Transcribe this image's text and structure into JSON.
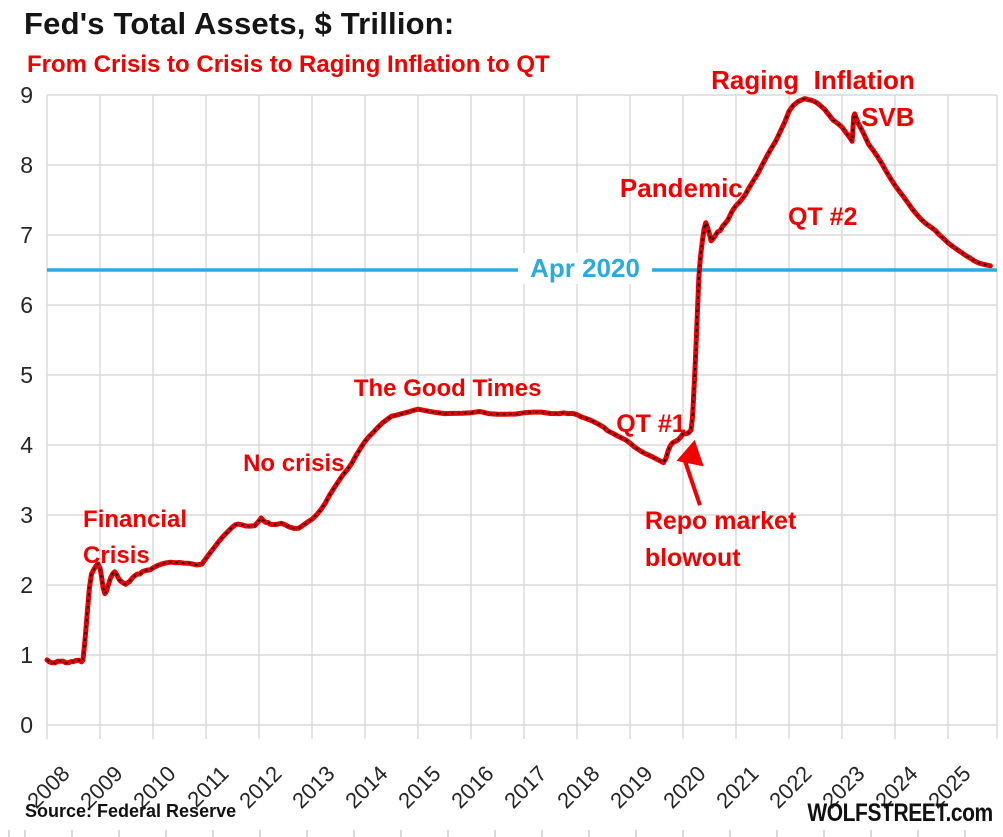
{
  "colors": {
    "red_text": "#f20000",
    "line_red": "#e60000",
    "cyan": "#29abe2",
    "grid": "#d9d9d9",
    "ink": "#151515"
  },
  "footer": {
    "source": "Source: Federal Reserve",
    "brand": "WOLFSTREET.com"
  },
  "chart_data": {
    "type": "line",
    "title": "Fed's Total Assets, $ Trillion:",
    "subtitle": "From Crisis to Crisis to Raging Inflation to QT",
    "xlabel": "",
    "ylabel": "",
    "ylim": [
      0,
      9
    ],
    "yticks": [
      0,
      1,
      2,
      3,
      4,
      5,
      6,
      7,
      8,
      9
    ],
    "xticks": [
      2008,
      2009,
      2010,
      2011,
      2012,
      2013,
      2014,
      2015,
      2016,
      2017,
      2018,
      2019,
      2020,
      2021,
      2022,
      2023,
      2024,
      2025
    ],
    "grid": true,
    "legend": "none",
    "reference_line": {
      "label": "Apr 2020",
      "value": 6.5
    },
    "annotations": [
      {
        "id": "financial-crisis",
        "text": "Financial\nCrisis",
        "year": 2008.68,
        "value": 3.19
      },
      {
        "id": "no-crisis",
        "text": "No crisis",
        "year": 2011.7,
        "value": 3.99
      },
      {
        "id": "good-times",
        "text": "The Good Times",
        "year": 2013.79,
        "value": 5.06
      },
      {
        "id": "qt1",
        "text": "QT #1",
        "year": 2018.74,
        "value": 4.56
      },
      {
        "id": "repo-blowout",
        "text": "Repo market\nblowout",
        "year": 2019.28,
        "value": 3.17
      },
      {
        "id": "pandemic",
        "text": "Pandemic",
        "year": 2018.81,
        "value": 7.94
      },
      {
        "id": "raging-inflation",
        "text": "Raging  Inflation",
        "year": 2020.53,
        "value": 9.49
      },
      {
        "id": "svb",
        "text": "SVB",
        "year": 2023.36,
        "value": 8.96
      },
      {
        "id": "qt2",
        "text": "QT #2",
        "year": 2021.98,
        "value": 7.51
      }
    ],
    "arrow": {
      "from": {
        "year": 2020.32,
        "value": 3.14
      },
      "to": {
        "year": 2020.02,
        "value": 3.81
      }
    },
    "series": [
      {
        "name": "Fed total assets, $ trillions",
        "points": [
          [
            2008.0,
            0.93
          ],
          [
            2008.05,
            0.91
          ],
          [
            2008.1,
            0.9
          ],
          [
            2008.15,
            0.89
          ],
          [
            2008.2,
            0.9
          ],
          [
            2008.25,
            0.9
          ],
          [
            2008.3,
            0.91
          ],
          [
            2008.35,
            0.9
          ],
          [
            2008.4,
            0.9
          ],
          [
            2008.45,
            0.91
          ],
          [
            2008.5,
            0.9
          ],
          [
            2008.55,
            0.91
          ],
          [
            2008.6,
            0.92
          ],
          [
            2008.65,
            0.91
          ],
          [
            2008.68,
            0.94
          ],
          [
            2008.72,
            1.25
          ],
          [
            2008.76,
            1.6
          ],
          [
            2008.8,
            1.95
          ],
          [
            2008.84,
            2.15
          ],
          [
            2008.88,
            2.22
          ],
          [
            2008.92,
            2.28
          ],
          [
            2008.96,
            2.31
          ],
          [
            2009.0,
            2.24
          ],
          [
            2009.03,
            2.1
          ],
          [
            2009.06,
            1.95
          ],
          [
            2009.09,
            1.88
          ],
          [
            2009.12,
            1.92
          ],
          [
            2009.16,
            2.02
          ],
          [
            2009.2,
            2.1
          ],
          [
            2009.24,
            2.15
          ],
          [
            2009.28,
            2.18
          ],
          [
            2009.32,
            2.14
          ],
          [
            2009.36,
            2.09
          ],
          [
            2009.4,
            2.06
          ],
          [
            2009.44,
            2.03
          ],
          [
            2009.48,
            2.0
          ],
          [
            2009.52,
            2.02
          ],
          [
            2009.56,
            2.05
          ],
          [
            2009.6,
            2.1
          ],
          [
            2009.65,
            2.14
          ],
          [
            2009.7,
            2.16
          ],
          [
            2009.75,
            2.15
          ],
          [
            2009.8,
            2.18
          ],
          [
            2009.85,
            2.2
          ],
          [
            2009.9,
            2.22
          ],
          [
            2009.95,
            2.23
          ],
          [
            2010.0,
            2.25
          ],
          [
            2010.08,
            2.27
          ],
          [
            2010.17,
            2.29
          ],
          [
            2010.25,
            2.31
          ],
          [
            2010.33,
            2.33
          ],
          [
            2010.42,
            2.33
          ],
          [
            2010.5,
            2.33
          ],
          [
            2010.58,
            2.31
          ],
          [
            2010.67,
            2.3
          ],
          [
            2010.75,
            2.29
          ],
          [
            2010.83,
            2.29
          ],
          [
            2010.92,
            2.31
          ],
          [
            2011.0,
            2.39
          ],
          [
            2011.08,
            2.46
          ],
          [
            2011.17,
            2.54
          ],
          [
            2011.25,
            2.62
          ],
          [
            2011.33,
            2.7
          ],
          [
            2011.42,
            2.78
          ],
          [
            2011.5,
            2.84
          ],
          [
            2011.55,
            2.86
          ],
          [
            2011.6,
            2.86
          ],
          [
            2011.67,
            2.85
          ],
          [
            2011.75,
            2.84
          ],
          [
            2011.83,
            2.85
          ],
          [
            2011.92,
            2.86
          ],
          [
            2012.0,
            2.92
          ],
          [
            2012.04,
            2.95
          ],
          [
            2012.08,
            2.91
          ],
          [
            2012.13,
            2.89
          ],
          [
            2012.17,
            2.9
          ],
          [
            2012.21,
            2.88
          ],
          [
            2012.25,
            2.87
          ],
          [
            2012.33,
            2.86
          ],
          [
            2012.42,
            2.87
          ],
          [
            2012.5,
            2.85
          ],
          [
            2012.58,
            2.83
          ],
          [
            2012.67,
            2.82
          ],
          [
            2012.75,
            2.82
          ],
          [
            2012.83,
            2.85
          ],
          [
            2012.92,
            2.89
          ],
          [
            2013.0,
            2.93
          ],
          [
            2013.08,
            3.0
          ],
          [
            2013.17,
            3.09
          ],
          [
            2013.25,
            3.18
          ],
          [
            2013.33,
            3.28
          ],
          [
            2013.42,
            3.38
          ],
          [
            2013.5,
            3.47
          ],
          [
            2013.58,
            3.57
          ],
          [
            2013.67,
            3.66
          ],
          [
            2013.75,
            3.75
          ],
          [
            2013.83,
            3.85
          ],
          [
            2013.92,
            3.95
          ],
          [
            2014.0,
            4.04
          ],
          [
            2014.08,
            4.12
          ],
          [
            2014.17,
            4.2
          ],
          [
            2014.25,
            4.27
          ],
          [
            2014.33,
            4.32
          ],
          [
            2014.42,
            4.36
          ],
          [
            2014.5,
            4.4
          ],
          [
            2014.58,
            4.42
          ],
          [
            2014.67,
            4.45
          ],
          [
            2014.75,
            4.47
          ],
          [
            2014.83,
            4.48
          ],
          [
            2014.92,
            4.49
          ],
          [
            2015.0,
            4.5
          ],
          [
            2015.17,
            4.48
          ],
          [
            2015.33,
            4.47
          ],
          [
            2015.5,
            4.46
          ],
          [
            2015.67,
            4.46
          ],
          [
            2015.83,
            4.45
          ],
          [
            2016.0,
            4.45
          ],
          [
            2016.17,
            4.47
          ],
          [
            2016.33,
            4.45
          ],
          [
            2016.5,
            4.45
          ],
          [
            2016.67,
            4.45
          ],
          [
            2016.83,
            4.44
          ],
          [
            2017.0,
            4.45
          ],
          [
            2017.17,
            4.46
          ],
          [
            2017.33,
            4.47
          ],
          [
            2017.5,
            4.46
          ],
          [
            2017.67,
            4.46
          ],
          [
            2017.75,
            4.46
          ],
          [
            2017.83,
            4.44
          ],
          [
            2017.92,
            4.44
          ],
          [
            2018.0,
            4.43
          ],
          [
            2018.08,
            4.41
          ],
          [
            2018.17,
            4.39
          ],
          [
            2018.25,
            4.36
          ],
          [
            2018.33,
            4.32
          ],
          [
            2018.42,
            4.28
          ],
          [
            2018.5,
            4.25
          ],
          [
            2018.58,
            4.21
          ],
          [
            2018.67,
            4.18
          ],
          [
            2018.75,
            4.14
          ],
          [
            2018.83,
            4.1
          ],
          [
            2018.92,
            4.06
          ],
          [
            2019.0,
            4.02
          ],
          [
            2019.08,
            3.98
          ],
          [
            2019.17,
            3.94
          ],
          [
            2019.25,
            3.9
          ],
          [
            2019.33,
            3.86
          ],
          [
            2019.42,
            3.82
          ],
          [
            2019.5,
            3.79
          ],
          [
            2019.58,
            3.77
          ],
          [
            2019.63,
            3.76
          ],
          [
            2019.68,
            3.82
          ],
          [
            2019.72,
            3.92
          ],
          [
            2019.76,
            3.98
          ],
          [
            2019.8,
            4.02
          ],
          [
            2019.85,
            4.05
          ],
          [
            2019.9,
            4.08
          ],
          [
            2019.95,
            4.12
          ],
          [
            2020.0,
            4.16
          ],
          [
            2020.05,
            4.15
          ],
          [
            2020.1,
            4.16
          ],
          [
            2020.15,
            4.21
          ],
          [
            2020.18,
            4.4
          ],
          [
            2020.2,
            4.7
          ],
          [
            2020.22,
            5.0
          ],
          [
            2020.24,
            5.3
          ],
          [
            2020.27,
            5.85
          ],
          [
            2020.3,
            6.4
          ],
          [
            2020.33,
            6.7
          ],
          [
            2020.37,
            6.95
          ],
          [
            2020.4,
            7.1
          ],
          [
            2020.43,
            7.17
          ],
          [
            2020.46,
            7.1
          ],
          [
            2020.5,
            7.0
          ],
          [
            2020.53,
            6.92
          ],
          [
            2020.57,
            6.96
          ],
          [
            2020.61,
            7.0
          ],
          [
            2020.65,
            7.04
          ],
          [
            2020.7,
            7.05
          ],
          [
            2020.75,
            7.12
          ],
          [
            2020.8,
            7.17
          ],
          [
            2020.85,
            7.23
          ],
          [
            2020.9,
            7.31
          ],
          [
            2020.95,
            7.37
          ],
          [
            2021.0,
            7.41
          ],
          [
            2021.08,
            7.47
          ],
          [
            2021.17,
            7.57
          ],
          [
            2021.25,
            7.69
          ],
          [
            2021.33,
            7.79
          ],
          [
            2021.42,
            7.89
          ],
          [
            2021.5,
            8.0
          ],
          [
            2021.58,
            8.11
          ],
          [
            2021.67,
            8.24
          ],
          [
            2021.75,
            8.35
          ],
          [
            2021.83,
            8.48
          ],
          [
            2021.92,
            8.62
          ],
          [
            2022.0,
            8.76
          ],
          [
            2022.08,
            8.84
          ],
          [
            2022.17,
            8.9
          ],
          [
            2022.25,
            8.94
          ],
          [
            2022.3,
            8.96
          ],
          [
            2022.35,
            8.94
          ],
          [
            2022.42,
            8.92
          ],
          [
            2022.5,
            8.89
          ],
          [
            2022.58,
            8.85
          ],
          [
            2022.67,
            8.8
          ],
          [
            2022.75,
            8.73
          ],
          [
            2022.83,
            8.65
          ],
          [
            2022.92,
            8.59
          ],
          [
            2023.0,
            8.53
          ],
          [
            2023.08,
            8.45
          ],
          [
            2023.15,
            8.39
          ],
          [
            2023.19,
            8.35
          ],
          [
            2023.22,
            8.7
          ],
          [
            2023.24,
            8.73
          ],
          [
            2023.27,
            8.66
          ],
          [
            2023.31,
            8.58
          ],
          [
            2023.36,
            8.52
          ],
          [
            2023.42,
            8.44
          ],
          [
            2023.5,
            8.31
          ],
          [
            2023.58,
            8.22
          ],
          [
            2023.67,
            8.11
          ],
          [
            2023.75,
            8.01
          ],
          [
            2023.83,
            7.91
          ],
          [
            2023.92,
            7.81
          ],
          [
            2024.0,
            7.72
          ],
          [
            2024.08,
            7.63
          ],
          [
            2024.17,
            7.53
          ],
          [
            2024.25,
            7.44
          ],
          [
            2024.33,
            7.36
          ],
          [
            2024.42,
            7.29
          ],
          [
            2024.5,
            7.23
          ],
          [
            2024.58,
            7.17
          ],
          [
            2024.67,
            7.11
          ],
          [
            2024.75,
            7.06
          ],
          [
            2024.83,
            7.0
          ],
          [
            2024.92,
            6.95
          ],
          [
            2025.0,
            6.9
          ],
          [
            2025.08,
            6.85
          ],
          [
            2025.17,
            6.79
          ],
          [
            2025.25,
            6.74
          ],
          [
            2025.33,
            6.7
          ],
          [
            2025.42,
            6.67
          ],
          [
            2025.5,
            6.64
          ],
          [
            2025.58,
            6.61
          ],
          [
            2025.68,
            6.58
          ],
          [
            2025.8,
            6.55
          ]
        ]
      }
    ]
  }
}
